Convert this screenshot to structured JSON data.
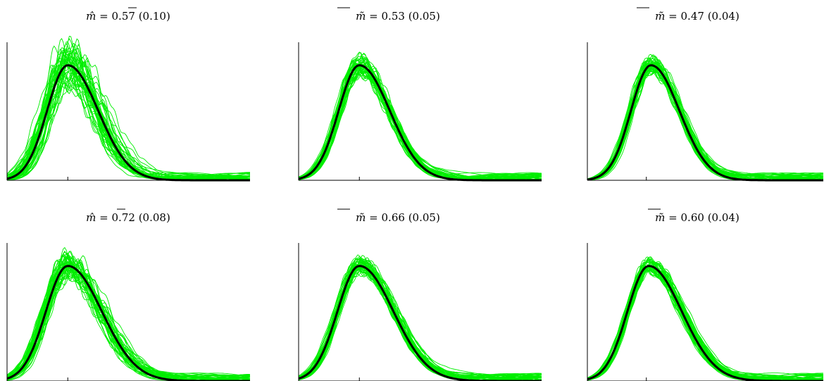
{
  "colors": {
    "replicates": "#00ee00",
    "true_density": "#000000",
    "axes": "#000000"
  },
  "chart_data": [
    {
      "type": "line",
      "title_symbol": "m̂",
      "title_value": "0.57",
      "title_sd": "(0.10)",
      "x_tick": 0.25,
      "true_density": {
        "mode": 0.25,
        "sd_left": 0.085,
        "sd_right": 0.125,
        "peak": 1.0
      },
      "replicates": {
        "count": 45,
        "seed": 11,
        "peak_jitter": 0.16,
        "mode_jitter": 0.028,
        "width_jitter": 0.14,
        "wiggle": 0.1
      },
      "xlim": [
        0,
        1
      ],
      "ylim": [
        0,
        1.2
      ]
    },
    {
      "type": "line",
      "title_symbol": "m̃",
      "title_value": "0.53",
      "title_sd": "(0.05)",
      "x_tick": 0.25,
      "true_density": {
        "mode": 0.25,
        "sd_left": 0.085,
        "sd_right": 0.125,
        "peak": 1.0
      },
      "replicates": {
        "count": 45,
        "seed": 23,
        "peak_jitter": 0.08,
        "mode_jitter": 0.014,
        "width_jitter": 0.08,
        "wiggle": 0.05
      },
      "xlim": [
        0,
        1
      ],
      "ylim": [
        0,
        1.2
      ]
    },
    {
      "type": "line",
      "title_symbol": "m̃",
      "title_value": "0.47",
      "title_sd": "(0.04)",
      "x_tick": 0.25,
      "true_density": {
        "mode": 0.27,
        "sd_left": 0.085,
        "sd_right": 0.12,
        "peak": 1.0
      },
      "replicates": {
        "count": 45,
        "seed": 37,
        "peak_jitter": 0.06,
        "mode_jitter": 0.012,
        "width_jitter": 0.07,
        "wiggle": 0.04
      },
      "xlim": [
        0,
        1
      ],
      "ylim": [
        0,
        1.2
      ]
    },
    {
      "type": "line",
      "title_symbol": "m̂",
      "title_value": "0.72",
      "title_sd": "(0.08)",
      "x_tick": 0.25,
      "true_density": {
        "mode": 0.25,
        "sd_left": 0.09,
        "sd_right": 0.14,
        "peak": 1.0
      },
      "replicates": {
        "count": 45,
        "seed": 51,
        "peak_jitter": 0.09,
        "mode_jitter": 0.018,
        "width_jitter": 0.1,
        "wiggle": 0.07
      },
      "xlim": [
        0,
        1
      ],
      "ylim": [
        0,
        1.2
      ]
    },
    {
      "type": "line",
      "title_symbol": "m̃",
      "title_value": "0.66",
      "title_sd": "(0.05)",
      "x_tick": 0.25,
      "true_density": {
        "mode": 0.25,
        "sd_left": 0.09,
        "sd_right": 0.14,
        "peak": 1.0
      },
      "replicates": {
        "count": 45,
        "seed": 67,
        "peak_jitter": 0.06,
        "mode_jitter": 0.012,
        "width_jitter": 0.07,
        "wiggle": 0.04
      },
      "xlim": [
        0,
        1
      ],
      "ylim": [
        0,
        1.2
      ]
    },
    {
      "type": "line",
      "title_symbol": "m̃",
      "title_value": "0.60",
      "title_sd": "(0.04)",
      "x_tick": 0.25,
      "true_density": {
        "mode": 0.26,
        "sd_left": 0.09,
        "sd_right": 0.14,
        "peak": 1.0
      },
      "replicates": {
        "count": 45,
        "seed": 79,
        "peak_jitter": 0.05,
        "mode_jitter": 0.01,
        "width_jitter": 0.06,
        "wiggle": 0.03
      },
      "xlim": [
        0,
        1
      ],
      "ylim": [
        0,
        1.2
      ]
    }
  ]
}
